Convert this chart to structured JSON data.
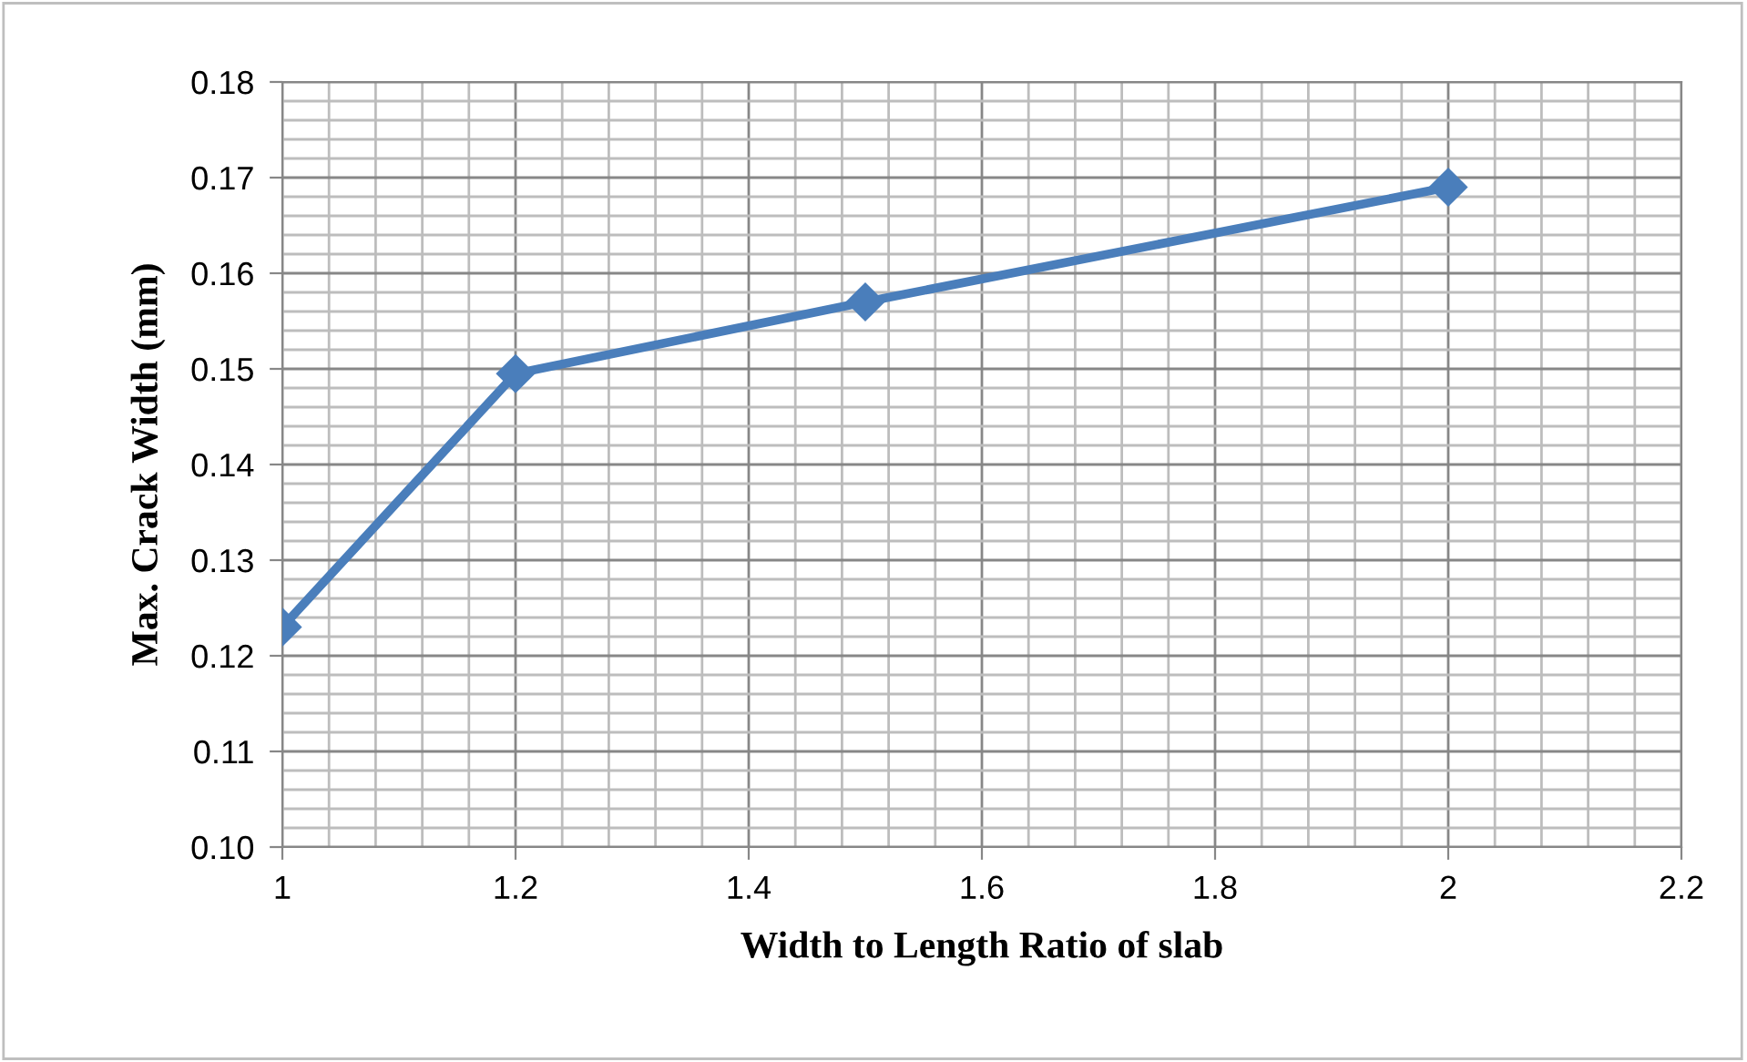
{
  "chart_data": {
    "type": "line",
    "xlabel": "Width to Length Ratio of slab",
    "ylabel": "Max. Crack Width (mm)",
    "x": [
      1,
      1.2,
      1.5,
      2
    ],
    "series": [
      {
        "color": "#4a7ebb",
        "values": [
          0.123,
          0.1495,
          0.157,
          0.169
        ]
      }
    ],
    "xlim": [
      1,
      2.2
    ],
    "xticks": [
      1,
      1.2,
      1.4,
      1.6,
      1.8,
      2,
      2.2
    ],
    "ylim": [
      0.1,
      0.18
    ],
    "yticks": [
      {
        "value": 0.1,
        "label": "0.10"
      },
      {
        "value": 0.11,
        "label": "0.11"
      },
      {
        "value": 0.12,
        "label": "0.12"
      },
      {
        "value": 0.13,
        "label": "0.13"
      },
      {
        "value": 0.14,
        "label": "0.14"
      },
      {
        "value": 0.15,
        "label": "0.15"
      },
      {
        "value": 0.16,
        "label": "0.16"
      },
      {
        "value": 0.17,
        "label": "0.17"
      },
      {
        "value": 0.18,
        "label": "0.18"
      }
    ],
    "grid": true,
    "marker": "diamond",
    "line_style": "solid",
    "legend": false
  }
}
